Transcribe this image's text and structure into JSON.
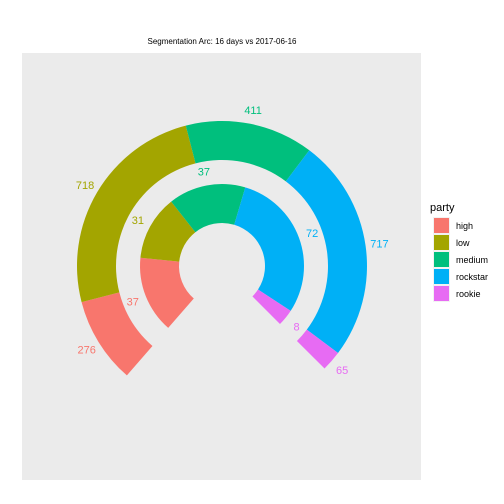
{
  "chart_data": {
    "type": "donut-arc",
    "title": "Segmentation Arc: 16 days vs 2017-06-16",
    "legend": {
      "title": "party",
      "placement": "right",
      "entries": [
        "high",
        "low",
        "medium",
        "rockstar",
        "rookie"
      ]
    },
    "categories": [
      "high",
      "low",
      "medium",
      "rockstar",
      "rookie"
    ],
    "colors": [
      "#F8766D",
      "#A3A500",
      "#00BF7D",
      "#00B0F6",
      "#E76BF3"
    ],
    "series": [
      {
        "values": [
          276,
          718,
          411,
          717,
          65
        ]
      },
      {
        "values": [
          37,
          31,
          37,
          72,
          8
        ]
      }
    ],
    "grid": false
  }
}
